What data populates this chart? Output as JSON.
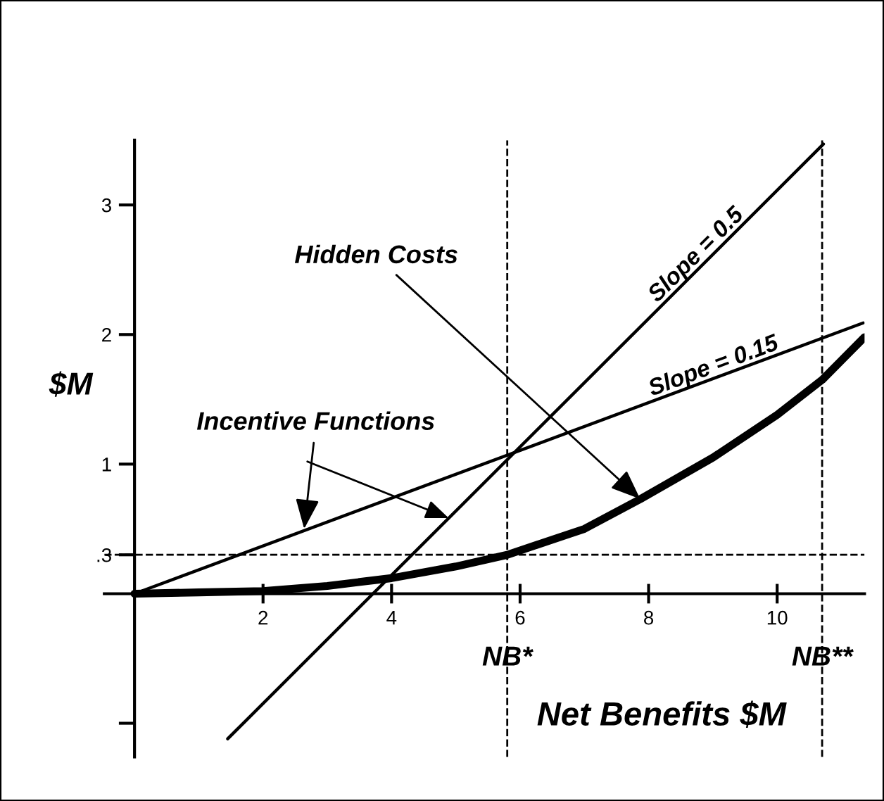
{
  "chart_data": {
    "type": "line",
    "xlabel": "Net Benefits $M",
    "ylabel": "$M",
    "series": [
      {
        "color": "#000000",
        "x": [
          0,
          11.34
        ],
        "values": [
          0,
          2.09
        ]
      },
      {
        "color": "#000000",
        "x": [
          1.45,
          10.72
        ],
        "values": [
          -1.12,
          3.47
        ]
      },
      {
        "color": "#000000",
        "x": [
          0,
          1,
          2,
          3,
          4,
          5,
          5.8,
          7,
          7.87,
          9,
          10,
          10.7,
          11.36
        ],
        "values": [
          0,
          0.01,
          0.02,
          0.06,
          0.12,
          0.21,
          0.3,
          0.5,
          0.73,
          1.05,
          1.38,
          1.65,
          1.98
        ]
      }
    ],
    "xlim": [
      -0.47,
      11.36
    ],
    "ylim": [
      -1.26,
      3.5
    ],
    "xticks": [
      2,
      4,
      6,
      8,
      10
    ],
    "yticks": [
      3,
      2,
      1,
      {
        "value": 0.3,
        "label": ".3"
      },
      {
        "value": -1,
        "label": null
      }
    ],
    "ref_lines": [
      {
        "axis": "x",
        "value": 5.8,
        "label": "NB*",
        "line_style": "dashed"
      },
      {
        "axis": "x",
        "value": 10.7,
        "label": "NB**",
        "line_style": "dashed"
      },
      {
        "axis": "y",
        "value": 0.3,
        "line_style": "dashed"
      }
    ],
    "annotations": [
      {
        "text": "Hidden Costs",
        "x": 7.87,
        "y": 0.73
      },
      {
        "text": "Incentive Functions",
        "x": 2.64,
        "y": 0.5
      },
      "Slope = 0.5",
      "Slope = 0.15"
    ],
    "grid": false,
    "marker": "none",
    "line_style": "solid"
  }
}
